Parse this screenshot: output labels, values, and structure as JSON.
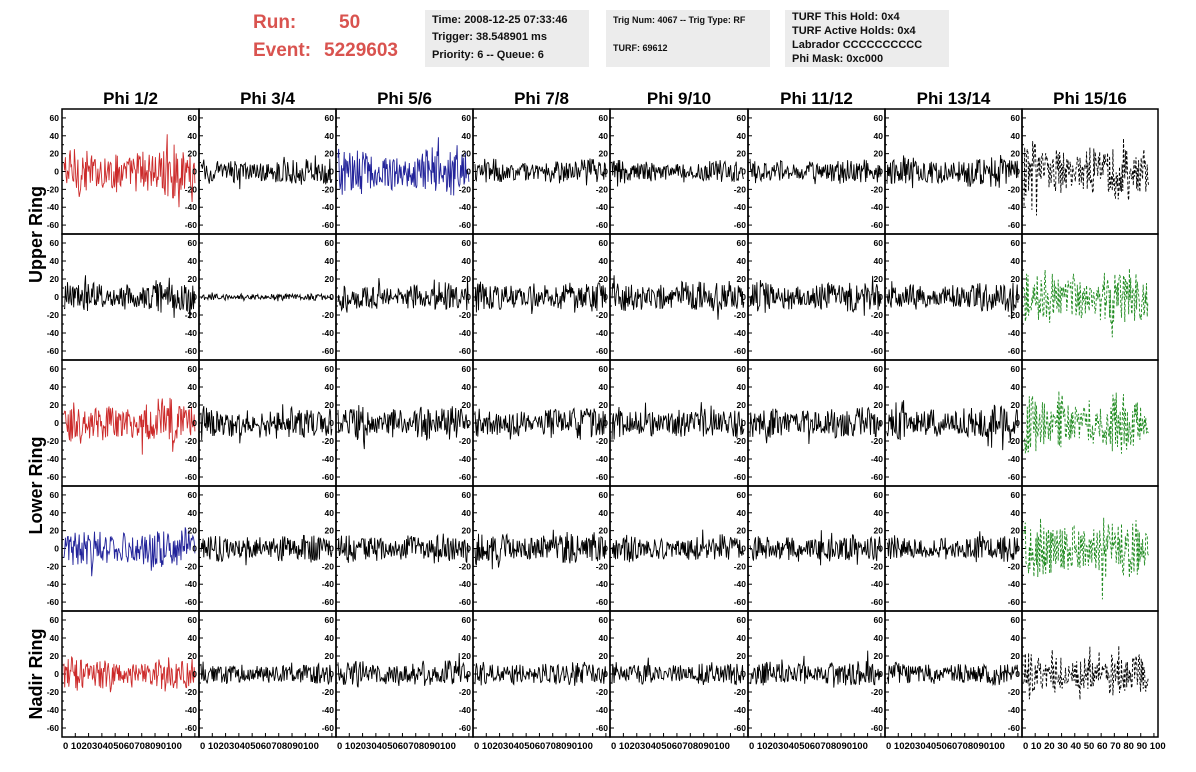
{
  "header": {
    "run_label": "Run:",
    "run_value": "50",
    "event_label": "Event:",
    "event_value": "5229603"
  },
  "info_boxes": [
    {
      "lines": [
        "Time: 2008-12-25 07:33:46",
        "Trigger: 38.548901 ms",
        "Priority: 6 -- Queue: 6"
      ]
    },
    {
      "lines": [
        "Trig Num: 4067 -- Trig Type: RF",
        "",
        "TURF: 69612"
      ]
    },
    {
      "lines": [
        "TURF This Hold: 0x4",
        "TURF Active Holds: 0x4",
        "Labrador CCCCCCCCCC",
        "Phi Mask: 0xc000"
      ]
    }
  ],
  "colors": {
    "red": "#cc2a2a",
    "blue": "#22239a",
    "green": "#1e8a1e",
    "black": "#000000"
  },
  "chart_data": {
    "type": "line",
    "columns": [
      "Phi 1/2",
      "Phi 3/4",
      "Phi 5/6",
      "Phi 7/8",
      "Phi 9/10",
      "Phi 11/12",
      "Phi 13/14",
      "Phi 15/16"
    ],
    "rows": [
      "Upper Ring",
      "Lower Ring",
      "Nadir Ring"
    ],
    "row_panels": [
      2,
      2,
      1
    ],
    "ylim": [
      -70,
      70
    ],
    "yticks": [
      -60,
      -40,
      -20,
      0,
      20,
      40,
      60
    ],
    "xlim": [
      0,
      100
    ],
    "xticks": [
      0,
      10,
      20,
      30,
      40,
      50,
      60,
      70,
      80,
      90,
      100
    ],
    "xtick_text": [
      "0 102030405060708090100",
      "0 102030405060708090100",
      "0 102030405060708090100",
      "0 102030405060708090100",
      "0 102030405060708090100",
      "0 102030405060708090100",
      "0 102030405060708090100",
      "0 10 20 30 40 50 60 70 80 90 100"
    ],
    "panels": [
      {
        "color": "red",
        "amp": 22,
        "style": "solid"
      },
      {
        "color": "black",
        "amp": 12,
        "style": "solid"
      },
      {
        "color": "blue",
        "amp": 22,
        "style": "solid"
      },
      {
        "color": "black",
        "amp": 12,
        "style": "solid"
      },
      {
        "color": "black",
        "amp": 11,
        "style": "solid"
      },
      {
        "color": "black",
        "amp": 11,
        "style": "solid"
      },
      {
        "color": "black",
        "amp": 14,
        "style": "solid"
      },
      {
        "color": "black",
        "amp": 24,
        "style": "dashed"
      },
      {
        "color": "black",
        "amp": 14,
        "style": "solid"
      },
      {
        "color": "black",
        "amp": 3,
        "style": "solid"
      },
      {
        "color": "black",
        "amp": 13,
        "style": "solid"
      },
      {
        "color": "black",
        "amp": 14,
        "style": "solid"
      },
      {
        "color": "black",
        "amp": 14,
        "style": "solid"
      },
      {
        "color": "black",
        "amp": 14,
        "style": "solid"
      },
      {
        "color": "black",
        "amp": 13,
        "style": "solid"
      },
      {
        "color": "green",
        "amp": 26,
        "style": "dashed"
      },
      {
        "color": "red",
        "amp": 20,
        "style": "solid"
      },
      {
        "color": "black",
        "amp": 14,
        "style": "solid"
      },
      {
        "color": "black",
        "amp": 16,
        "style": "solid"
      },
      {
        "color": "black",
        "amp": 14,
        "style": "solid"
      },
      {
        "color": "black",
        "amp": 14,
        "style": "solid"
      },
      {
        "color": "black",
        "amp": 14,
        "style": "solid"
      },
      {
        "color": "black",
        "amp": 15,
        "style": "solid"
      },
      {
        "color": "green",
        "amp": 26,
        "style": "dashed"
      },
      {
        "color": "blue",
        "amp": 18,
        "style": "solid"
      },
      {
        "color": "black",
        "amp": 12,
        "style": "solid"
      },
      {
        "color": "black",
        "amp": 13,
        "style": "solid"
      },
      {
        "color": "black",
        "amp": 14,
        "style": "solid"
      },
      {
        "color": "black",
        "amp": 12,
        "style": "solid"
      },
      {
        "color": "black",
        "amp": 12,
        "style": "solid"
      },
      {
        "color": "black",
        "amp": 12,
        "style": "solid"
      },
      {
        "color": "green",
        "amp": 28,
        "style": "dashed"
      },
      {
        "color": "red",
        "amp": 15,
        "style": "solid"
      },
      {
        "color": "black",
        "amp": 10,
        "style": "solid"
      },
      {
        "color": "black",
        "amp": 12,
        "style": "solid"
      },
      {
        "color": "black",
        "amp": 11,
        "style": "solid"
      },
      {
        "color": "black",
        "amp": 10,
        "style": "solid"
      },
      {
        "color": "black",
        "amp": 12,
        "style": "solid"
      },
      {
        "color": "black",
        "amp": 10,
        "style": "solid"
      },
      {
        "color": "black",
        "amp": 18,
        "style": "dashed"
      }
    ]
  }
}
